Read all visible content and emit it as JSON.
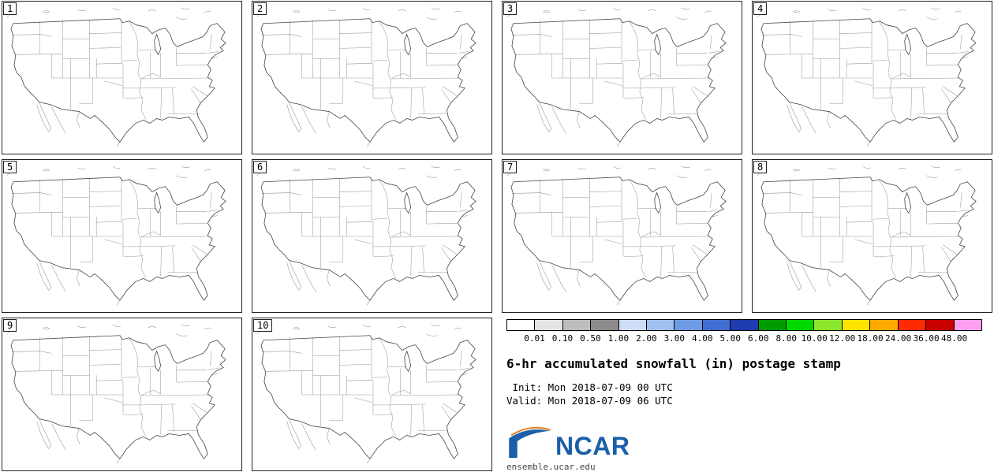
{
  "panels": [
    {
      "label": "1"
    },
    {
      "label": "2"
    },
    {
      "label": "3"
    },
    {
      "label": "4"
    },
    {
      "label": "5"
    },
    {
      "label": "6"
    },
    {
      "label": "7"
    },
    {
      "label": "8"
    },
    {
      "label": "9"
    },
    {
      "label": "10"
    }
  ],
  "colorbar": {
    "levels": [
      "0.01",
      "0.10",
      "0.50",
      "1.00",
      "2.00",
      "3.00",
      "4.00",
      "5.00",
      "6.00",
      "8.00",
      "10.00",
      "12.00",
      "18.00",
      "24.00",
      "36.00",
      "48.00"
    ],
    "colors": [
      "#ffffff",
      "#e3e3e3",
      "#bdbdbd",
      "#8c8c8c",
      "#cdddf8",
      "#9fc0f0",
      "#6f9be4",
      "#3f6ed0",
      "#1e3bb0",
      "#009c00",
      "#00d800",
      "#8ce62e",
      "#ffe400",
      "#ffaa00",
      "#ff2a00",
      "#c80000",
      "#ff9ff0"
    ]
  },
  "info": {
    "title": "6-hr accumulated snowfall (in) postage stamp",
    "init_line": " Init: Mon 2018-07-09 00 UTC",
    "valid_line": "Valid: Mon 2018-07-09 06 UTC",
    "logo_text": "NCAR",
    "site": "ensemble.ucar.edu"
  },
  "accent_colors": {
    "ncar_blue": "#1b5fa8",
    "ncar_swoosh": "#e87a21"
  }
}
